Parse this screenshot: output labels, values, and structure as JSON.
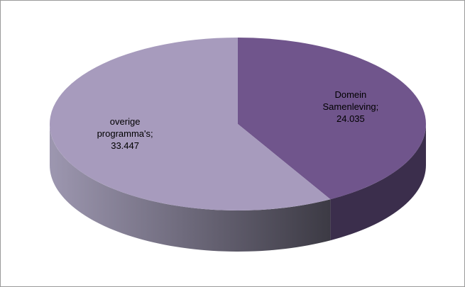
{
  "chart_data": {
    "type": "pie3d",
    "values": [
      24.035,
      33.447
    ],
    "value_labels": [
      "Domein Samenleving; 24.035",
      "overige programma's; 33.447"
    ],
    "colors": [
      "#70558c",
      "#a79bbd"
    ]
  }
}
